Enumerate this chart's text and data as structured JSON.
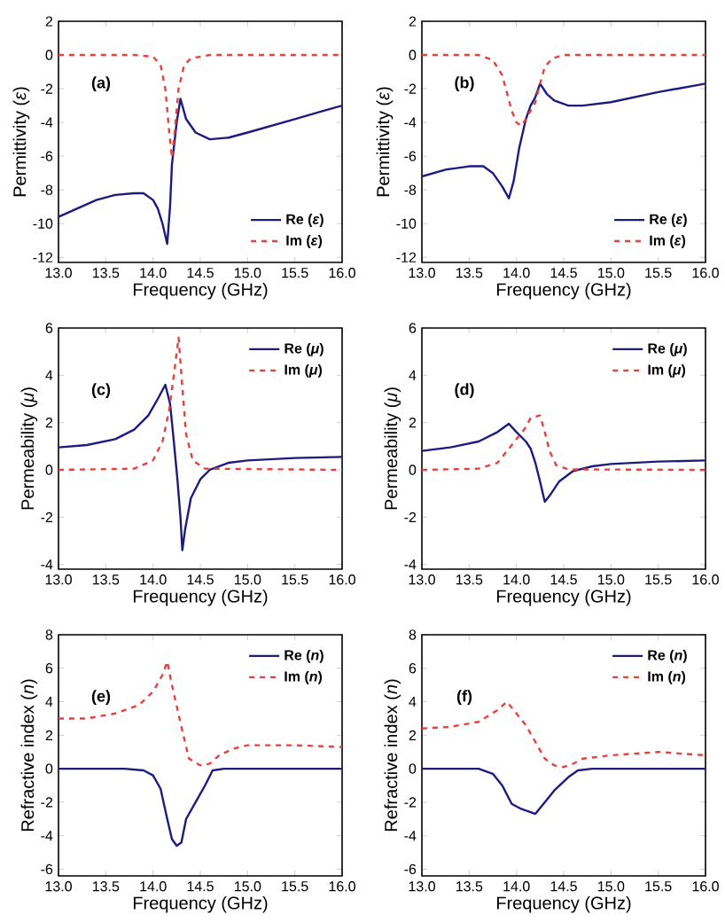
{
  "chart_data": [
    {
      "type": "line",
      "xlabel": "Frequency (GHz)",
      "ylabel": "Permittivity (*ε*)",
      "annotations": [
        "(a)"
      ],
      "legend": "bottom right",
      "marker": "none",
      "xlim": [
        13.0,
        16.0
      ],
      "xticks": [
        {
          "value": 13.0,
          "label": "13.0"
        },
        {
          "value": 13.5,
          "label": "13.5"
        },
        {
          "value": 14.0,
          "label": "14.0"
        },
        {
          "value": 14.5,
          "label": "14.5"
        },
        {
          "value": 15.0,
          "label": "15.0"
        },
        {
          "value": 15.5,
          "label": "15.5"
        },
        {
          "value": 16.0,
          "label": "16.0"
        }
      ],
      "ylim": [
        -12.3,
        2
      ],
      "yticks": [
        -12,
        -10,
        -8,
        -6,
        -4,
        -2,
        0,
        2
      ],
      "series": [
        {
          "name": "Re (*ε*)",
          "color": "#1c1c80",
          "line_style": "solid",
          "x": [
            13.0,
            13.2,
            13.4,
            13.6,
            13.8,
            13.9,
            14.0,
            14.05,
            14.1,
            14.15,
            14.18,
            14.2,
            14.25,
            14.29,
            14.35,
            14.45,
            14.6,
            14.8,
            15.0,
            15.25,
            15.5,
            15.75,
            16.0
          ],
          "values": [
            -9.6,
            -9.1,
            -8.6,
            -8.3,
            -8.2,
            -8.2,
            -8.6,
            -9.1,
            -10.0,
            -11.2,
            -9.0,
            -6.5,
            -4.0,
            -2.6,
            -3.8,
            -4.6,
            -5.0,
            -4.9,
            -4.6,
            -4.2,
            -3.8,
            -3.4,
            -3.0
          ]
        },
        {
          "name": "Im (*ε*)",
          "color": "#e8413c",
          "line_style": "dashed",
          "x": [
            13.0,
            13.8,
            14.0,
            14.08,
            14.13,
            14.17,
            14.2,
            14.23,
            14.27,
            14.33,
            14.4,
            14.6,
            16.0
          ],
          "values": [
            0,
            0,
            -0.1,
            -0.6,
            -2.0,
            -4.5,
            -6.1,
            -4.5,
            -2.0,
            -0.6,
            -0.2,
            0,
            0
          ]
        }
      ]
    },
    {
      "type": "line",
      "xlabel": "Frequency (GHz)",
      "ylabel": "Permittivity (*ε*)",
      "annotations": [
        "(b)"
      ],
      "legend": "bottom right",
      "marker": "none",
      "xlim": [
        13.0,
        16.0
      ],
      "xticks": [
        {
          "value": 13.0,
          "label": "13.0"
        },
        {
          "value": 13.5,
          "label": "13.5"
        },
        {
          "value": 14.0,
          "label": "14.0"
        },
        {
          "value": 14.5,
          "label": "14.5"
        },
        {
          "value": 15.0,
          "label": "15.0"
        },
        {
          "value": 15.5,
          "label": "15.5"
        },
        {
          "value": 16.0,
          "label": "16.0"
        }
      ],
      "ylim": [
        -12.3,
        2
      ],
      "yticks": [
        -12,
        -10,
        -8,
        -6,
        -4,
        -2,
        0,
        2
      ],
      "series": [
        {
          "name": "Re (*ε*)",
          "color": "#1c1c80",
          "line_style": "solid",
          "x": [
            13.0,
            13.25,
            13.5,
            13.65,
            13.75,
            13.85,
            13.92,
            13.97,
            14.03,
            14.1,
            14.15,
            14.2,
            14.25,
            14.32,
            14.4,
            14.55,
            14.7,
            15.0,
            15.5,
            16.0
          ],
          "values": [
            -7.2,
            -6.8,
            -6.6,
            -6.6,
            -7.0,
            -7.8,
            -8.5,
            -7.5,
            -5.5,
            -3.8,
            -3.0,
            -2.5,
            -1.7,
            -2.3,
            -2.7,
            -3.0,
            -3.0,
            -2.8,
            -2.2,
            -1.7
          ]
        },
        {
          "name": "Im (*ε*)",
          "color": "#e8413c",
          "line_style": "dashed",
          "x": [
            13.0,
            13.6,
            13.75,
            13.85,
            13.95,
            14.0,
            14.05,
            14.1,
            14.15,
            14.2,
            14.25,
            14.3,
            14.38,
            14.5,
            16.0
          ],
          "values": [
            0,
            0,
            -0.3,
            -1.2,
            -3.3,
            -4.0,
            -4.2,
            -3.8,
            -3.3,
            -2.8,
            -1.7,
            -0.7,
            -0.2,
            0,
            0
          ]
        }
      ]
    },
    {
      "type": "line",
      "xlabel": "Frequency (GHz)",
      "ylabel": "Permeability (*μ*)",
      "annotations": [
        "(c)"
      ],
      "legend": "top right",
      "marker": "none",
      "xlim": [
        13.0,
        16.0
      ],
      "xticks": [
        {
          "value": 13.0,
          "label": "13.0"
        },
        {
          "value": 13.5,
          "label": "13.5"
        },
        {
          "value": 14.0,
          "label": "14.0"
        },
        {
          "value": 14.5,
          "label": "14.5"
        },
        {
          "value": 15.0,
          "label": "15.0"
        },
        {
          "value": 15.5,
          "label": "15.5"
        },
        {
          "value": 16.0,
          "label": "16.0"
        }
      ],
      "ylim": [
        -4.2,
        6
      ],
      "yticks": [
        -4,
        -2,
        0,
        2,
        4,
        6
      ],
      "series": [
        {
          "name": "Re (*μ*)",
          "color": "#1c1c80",
          "line_style": "solid",
          "x": [
            13.0,
            13.3,
            13.6,
            13.8,
            13.95,
            14.05,
            14.13,
            14.18,
            14.22,
            14.26,
            14.29,
            14.31,
            14.34,
            14.4,
            14.5,
            14.6,
            14.8,
            15.0,
            15.5,
            16.0
          ],
          "values": [
            0.95,
            1.05,
            1.3,
            1.7,
            2.3,
            3.0,
            3.6,
            2.8,
            1.2,
            -0.5,
            -2.0,
            -3.4,
            -2.5,
            -1.2,
            -0.4,
            0.0,
            0.3,
            0.4,
            0.5,
            0.55
          ]
        },
        {
          "name": "Im (*μ*)",
          "color": "#e8413c",
          "line_style": "dashed",
          "x": [
            13.0,
            13.8,
            14.0,
            14.1,
            14.17,
            14.22,
            14.27,
            14.31,
            14.35,
            14.42,
            14.55,
            16.0
          ],
          "values": [
            0,
            0.05,
            0.4,
            1.2,
            2.5,
            4.0,
            5.6,
            3.5,
            1.5,
            0.4,
            0.05,
            0
          ]
        }
      ]
    },
    {
      "type": "line",
      "xlabel": "Frequency (GHz)",
      "ylabel": "Permeability (*μ*)",
      "annotations": [
        "(d)"
      ],
      "legend": "top right",
      "marker": "none",
      "xlim": [
        13.0,
        16.0
      ],
      "xticks": [
        {
          "value": 13.0,
          "label": "13.0"
        },
        {
          "value": 13.5,
          "label": "13.5"
        },
        {
          "value": 14.0,
          "label": "14.0"
        },
        {
          "value": 14.5,
          "label": "14.5"
        },
        {
          "value": 15.0,
          "label": "15.0"
        },
        {
          "value": 15.5,
          "label": "15.5"
        },
        {
          "value": 16.0,
          "label": "16.0"
        }
      ],
      "ylim": [
        -4.2,
        6
      ],
      "yticks": [
        -4,
        -2,
        0,
        2,
        4,
        6
      ],
      "series": [
        {
          "name": "Re (*μ*)",
          "color": "#1c1c80",
          "line_style": "solid",
          "x": [
            13.0,
            13.3,
            13.6,
            13.8,
            13.92,
            14.0,
            14.1,
            14.15,
            14.2,
            14.25,
            14.3,
            14.35,
            14.45,
            14.6,
            14.8,
            15.0,
            15.5,
            16.0
          ],
          "values": [
            0.8,
            0.95,
            1.2,
            1.6,
            1.95,
            1.6,
            1.2,
            0.9,
            0.3,
            -0.5,
            -1.35,
            -1.1,
            -0.5,
            -0.05,
            0.15,
            0.25,
            0.35,
            0.4
          ]
        },
        {
          "name": "Im (*μ*)",
          "color": "#e8413c",
          "line_style": "dashed",
          "x": [
            13.0,
            13.6,
            13.8,
            13.9,
            14.0,
            14.1,
            14.15,
            14.2,
            14.25,
            14.3,
            14.35,
            14.42,
            14.55,
            16.0
          ],
          "values": [
            0,
            0.05,
            0.3,
            0.8,
            1.3,
            1.8,
            2.2,
            2.25,
            2.3,
            1.6,
            0.8,
            0.2,
            0.02,
            0
          ]
        }
      ]
    },
    {
      "type": "line",
      "xlabel": "Frequency (GHz)",
      "ylabel": "Refractive index (*n*)",
      "annotations": [
        "(e)"
      ],
      "legend": "top right",
      "marker": "none",
      "xlim": [
        13.0,
        16.0
      ],
      "xticks": [
        {
          "value": 13.0,
          "label": "13.0"
        },
        {
          "value": 13.5,
          "label": "13.5"
        },
        {
          "value": 14.0,
          "label": "14.0"
        },
        {
          "value": 14.5,
          "label": "14.5"
        },
        {
          "value": 15.0,
          "label": "15.0"
        },
        {
          "value": 15.5,
          "label": "15.5"
        },
        {
          "value": 16.0,
          "label": "16.0"
        }
      ],
      "ylim": [
        -6.4,
        8
      ],
      "yticks": [
        -6,
        -4,
        -2,
        0,
        2,
        4,
        6,
        8
      ],
      "series": [
        {
          "name": "Re (*n*)",
          "color": "#1c1c80",
          "line_style": "solid",
          "x": [
            13.0,
            13.7,
            13.9,
            14.0,
            14.08,
            14.15,
            14.2,
            14.25,
            14.3,
            14.35,
            14.45,
            14.55,
            14.63,
            14.75,
            16.0
          ],
          "values": [
            0,
            0,
            -0.1,
            -0.4,
            -1.2,
            -3.0,
            -4.2,
            -4.6,
            -4.4,
            -3.0,
            -2.0,
            -1.0,
            -0.1,
            0,
            0
          ]
        },
        {
          "name": "Im (*n*)",
          "color": "#e8413c",
          "line_style": "dashed",
          "x": [
            13.0,
            13.3,
            13.6,
            13.85,
            14.0,
            14.1,
            14.15,
            14.2,
            14.3,
            14.38,
            14.5,
            14.6,
            14.7,
            14.85,
            15.0,
            15.5,
            16.0
          ],
          "values": [
            3.0,
            3.0,
            3.3,
            3.8,
            4.6,
            5.6,
            6.4,
            5.0,
            2.5,
            0.6,
            0.2,
            0.3,
            0.8,
            1.2,
            1.4,
            1.4,
            1.3
          ]
        }
      ]
    },
    {
      "type": "line",
      "xlabel": "Frequency (GHz)",
      "ylabel": "Refractive index (*n*)",
      "annotations": [
        "(f)"
      ],
      "legend": "top right",
      "marker": "none",
      "xlim": [
        13.0,
        16.0
      ],
      "xticks": [
        {
          "value": 13.0,
          "label": "13.0"
        },
        {
          "value": 13.5,
          "label": "13.5"
        },
        {
          "value": 14.0,
          "label": "14.0"
        },
        {
          "value": 14.5,
          "label": "14.5"
        },
        {
          "value": 15.0,
          "label": "15.0"
        },
        {
          "value": 15.5,
          "label": "15.5"
        },
        {
          "value": 16.0,
          "label": "16.0"
        }
      ],
      "ylim": [
        -6.4,
        8
      ],
      "yticks": [
        -6,
        -4,
        -2,
        0,
        2,
        4,
        6,
        8
      ],
      "series": [
        {
          "name": "Re (*n*)",
          "color": "#1c1c80",
          "line_style": "solid",
          "x": [
            13.0,
            13.6,
            13.75,
            13.85,
            13.95,
            14.05,
            14.15,
            14.2,
            14.3,
            14.4,
            14.55,
            14.65,
            14.8,
            16.0
          ],
          "values": [
            0,
            0,
            -0.3,
            -1.0,
            -2.1,
            -2.4,
            -2.6,
            -2.7,
            -2.0,
            -1.3,
            -0.5,
            -0.1,
            0,
            0
          ]
        },
        {
          "name": "Im (*n*)",
          "color": "#e8413c",
          "line_style": "dashed",
          "x": [
            13.0,
            13.3,
            13.6,
            13.8,
            13.9,
            14.0,
            14.1,
            14.2,
            14.3,
            14.4,
            14.5,
            14.6,
            14.7,
            15.0,
            15.5,
            16.0
          ],
          "values": [
            2.4,
            2.5,
            2.8,
            3.5,
            4.0,
            3.3,
            2.6,
            1.6,
            0.6,
            0.2,
            0.1,
            0.3,
            0.6,
            0.8,
            1.0,
            0.8
          ]
        }
      ]
    }
  ]
}
